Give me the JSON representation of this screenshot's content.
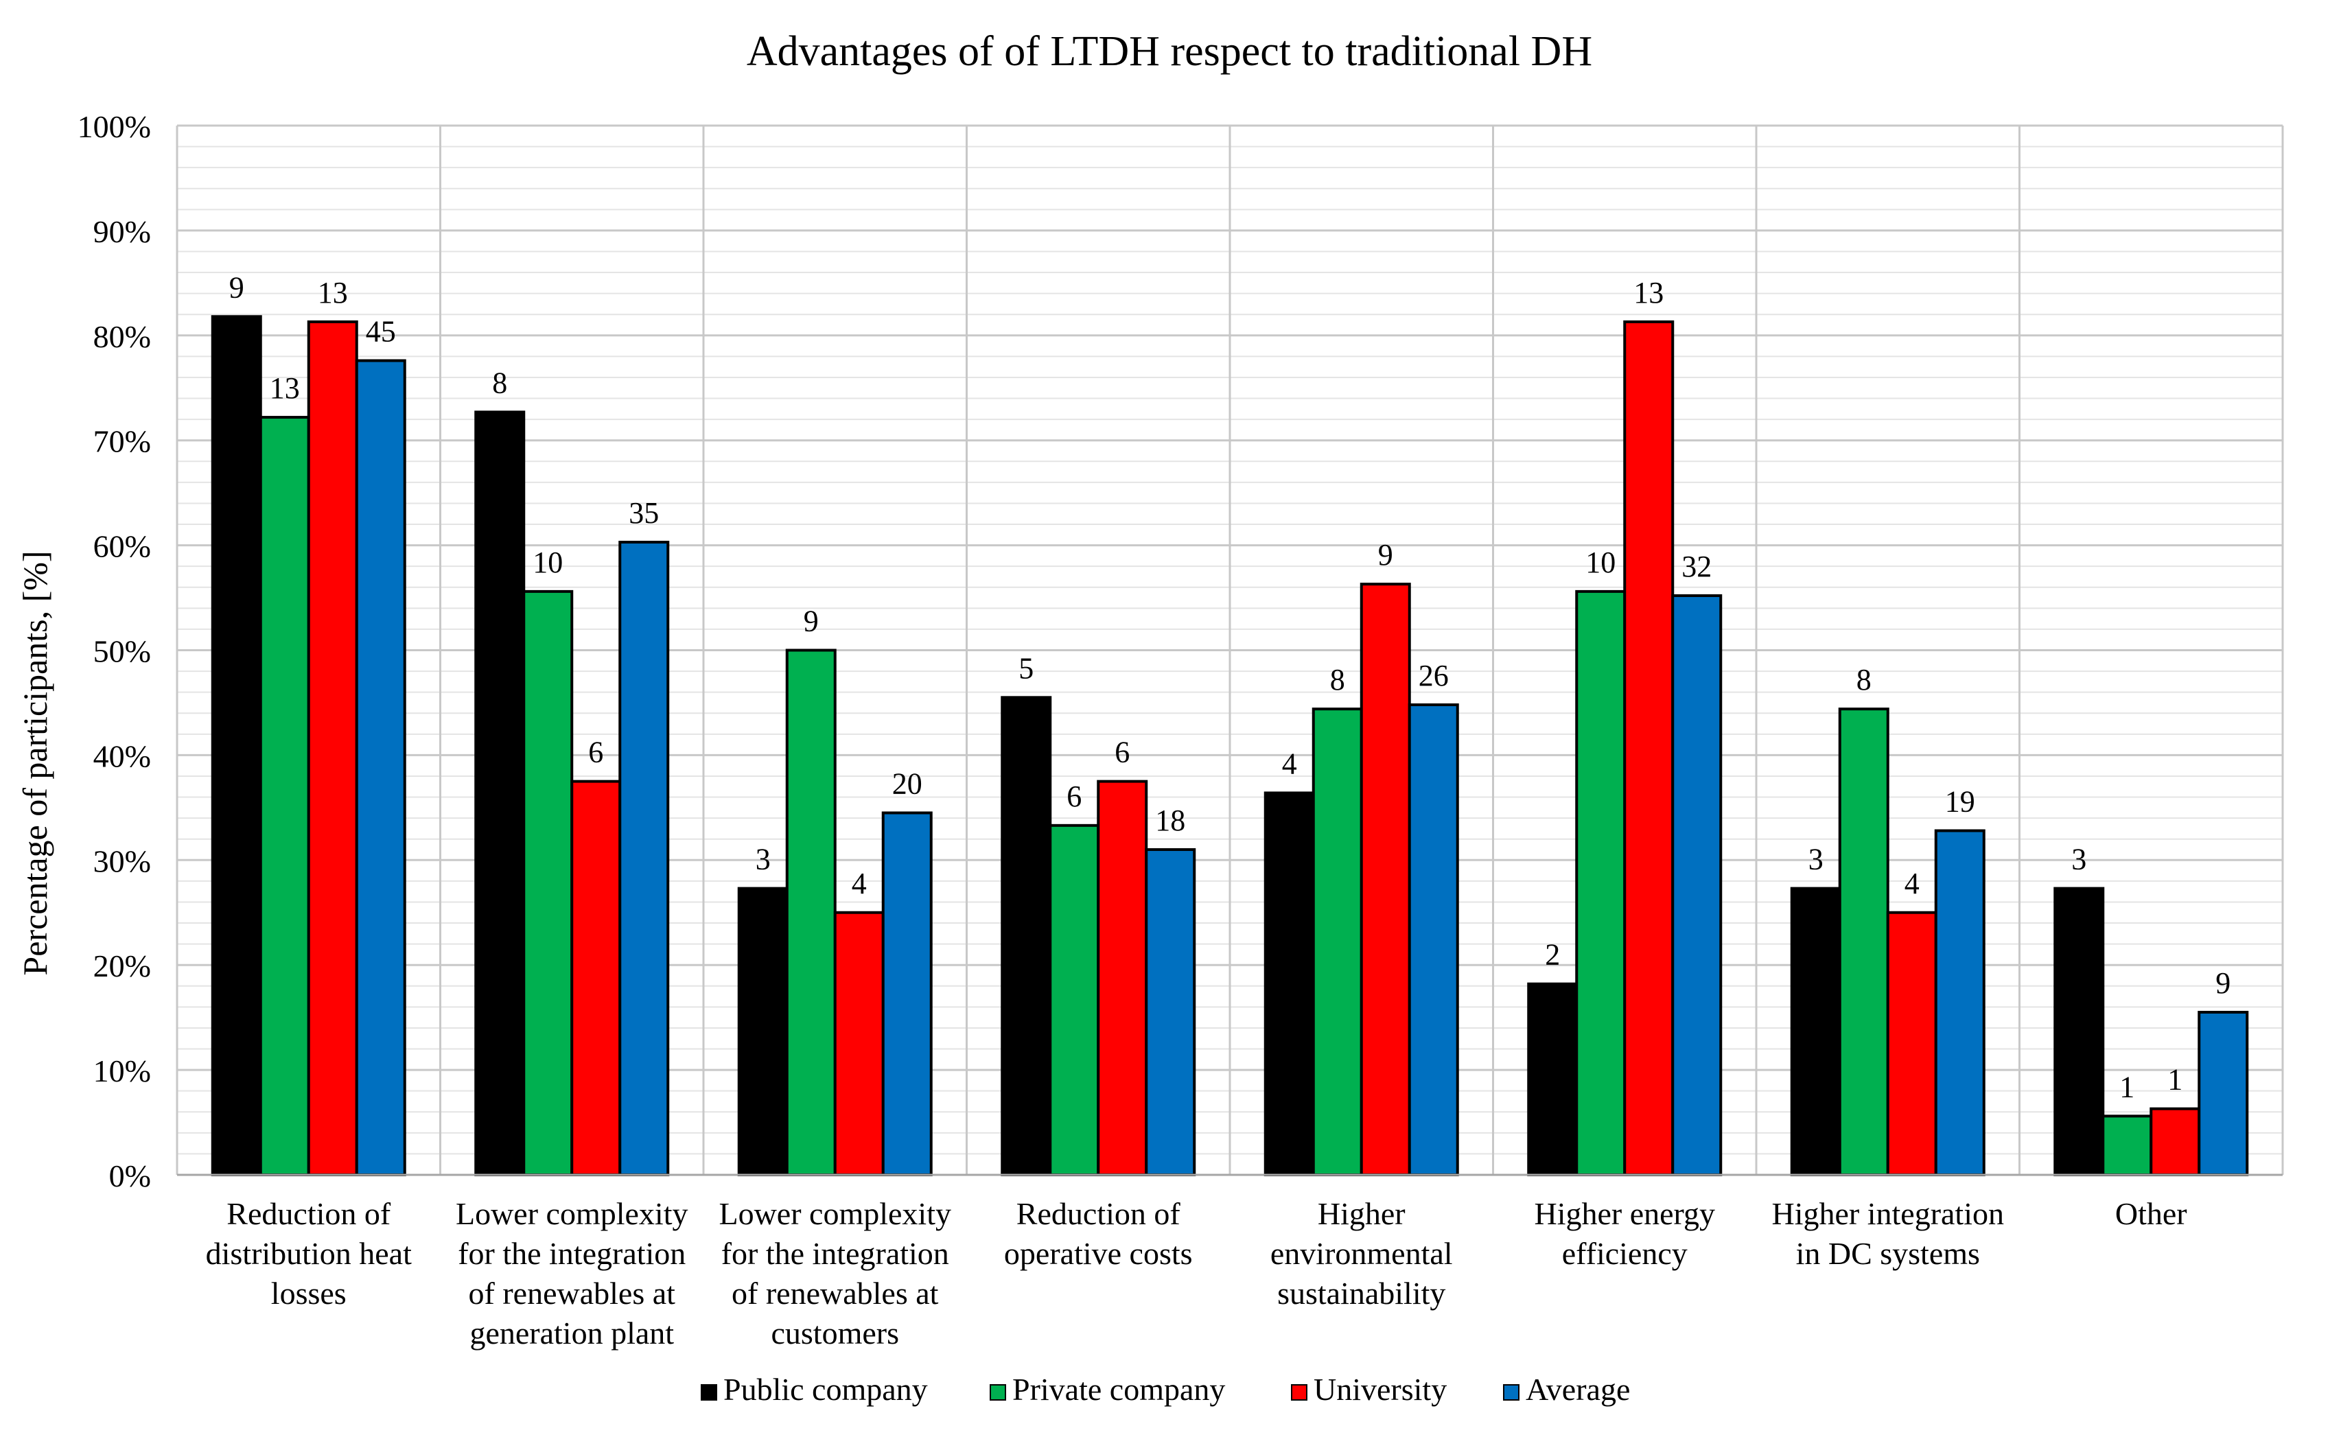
{
  "chart_data": {
    "type": "bar",
    "title": "Advantages of of LTDH respect to traditional DH",
    "xlabel": "",
    "ylabel": "Percentage of participants, [%]",
    "ylim": [
      0,
      100
    ],
    "yticks": [
      "0%",
      "10%",
      "20%",
      "30%",
      "40%",
      "50%",
      "60%",
      "70%",
      "80%",
      "90%",
      "100%"
    ],
    "grid": true,
    "legend_position": "bottom",
    "categories": [
      [
        "Reduction of",
        "distribution heat",
        "losses"
      ],
      [
        "Lower complexity",
        "for the integration",
        "of renewables at",
        "generation plant"
      ],
      [
        "Lower complexity",
        "for the integration",
        "of renewables at",
        "customers"
      ],
      [
        "Reduction of",
        "operative costs"
      ],
      [
        "Higher",
        "environmental",
        "sustainability"
      ],
      [
        "Higher energy",
        "efficiency"
      ],
      [
        "Higher integration",
        "in DC systems"
      ],
      [
        "Other"
      ]
    ],
    "series": [
      {
        "name": "Public company",
        "color": "#000000",
        "values": [
          81.8,
          72.7,
          27.3,
          45.5,
          36.4,
          18.2,
          27.3,
          27.3
        ],
        "labels": [
          "9",
          "8",
          "3",
          "5",
          "4",
          "2",
          "3",
          "3"
        ]
      },
      {
        "name": "Private company",
        "color": "#00B050",
        "values": [
          72.2,
          55.6,
          50.0,
          33.3,
          44.4,
          55.6,
          44.4,
          5.6
        ],
        "labels": [
          "13",
          "10",
          "9",
          "6",
          "8",
          "10",
          "8",
          "1"
        ]
      },
      {
        "name": "University",
        "color": "#FF0000",
        "values": [
          81.3,
          37.5,
          25.0,
          37.5,
          56.3,
          81.3,
          25.0,
          6.3
        ],
        "labels": [
          "13",
          "6",
          "4",
          "6",
          "9",
          "13",
          "4",
          "1"
        ]
      },
      {
        "name": "Average",
        "color": "#0070C0",
        "values": [
          77.6,
          60.3,
          34.5,
          31.0,
          44.8,
          55.2,
          32.8,
          15.5
        ],
        "labels": [
          "45",
          "35",
          "20",
          "18",
          "26",
          "32",
          "19",
          "9"
        ]
      }
    ]
  }
}
